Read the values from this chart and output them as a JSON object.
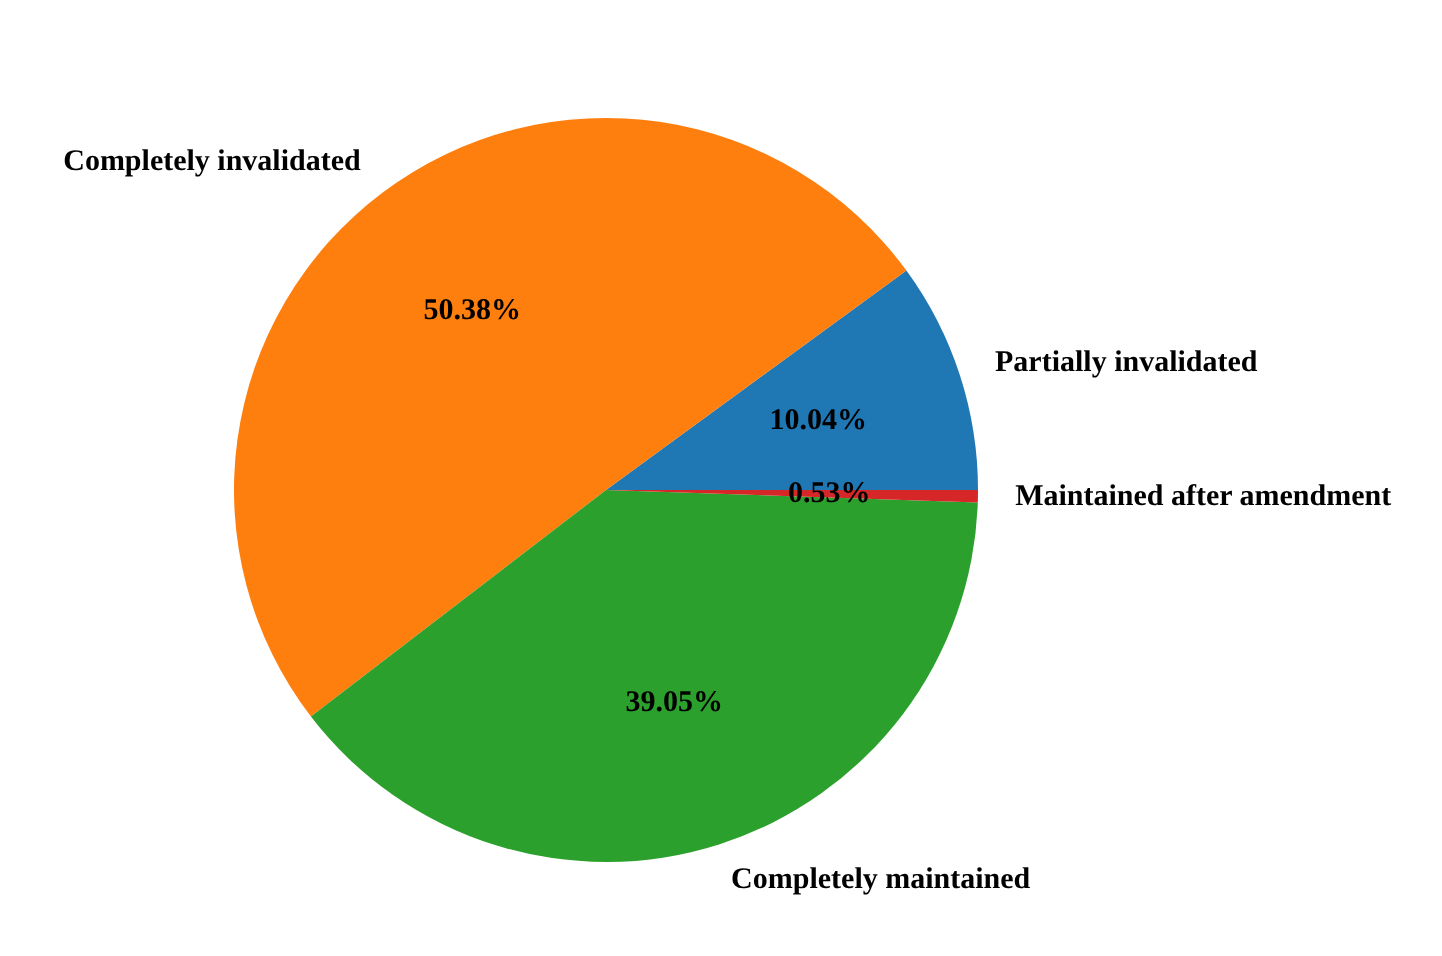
{
  "chart_data": {
    "type": "pie",
    "categories": [
      "Partially invalidated",
      "Completely invalidated",
      "Completely maintained",
      "Maintained after amendment"
    ],
    "values": [
      10.04,
      50.38,
      39.05,
      0.53
    ],
    "colors": [
      "#1f77b4",
      "#ff7f0e",
      "#2ca02c",
      "#d62728"
    ],
    "value_labels": [
      "10.04%",
      "50.38%",
      "39.05%",
      "0.53%"
    ]
  }
}
